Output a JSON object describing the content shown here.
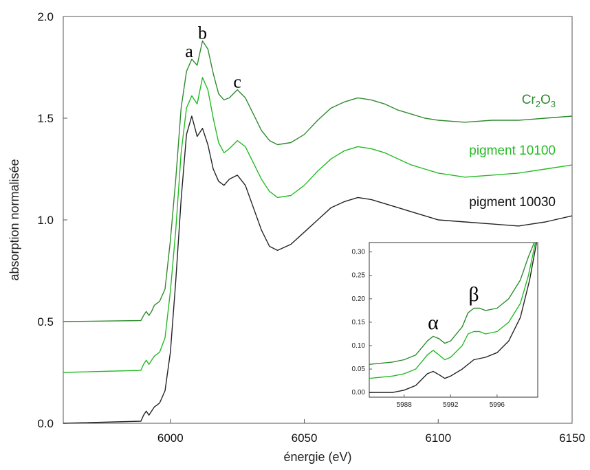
{
  "chart_data": [
    {
      "type": "line",
      "title": "",
      "xlabel": "énergie (eV)",
      "ylabel": "absorption normalisée",
      "xlim": [
        5960,
        6150
      ],
      "ylim": [
        0.0,
        2.0
      ],
      "xticks": [
        6000,
        6050,
        6100,
        6150
      ],
      "yticks": [
        0.0,
        0.5,
        1.0,
        1.5,
        2.0
      ],
      "x_tick_labels": [
        "6000",
        "6050",
        "6100",
        "6150"
      ],
      "y_tick_labels": [
        "0.0",
        "0.5",
        "1.0",
        "1.5",
        "2.0"
      ],
      "grid": false,
      "legend": "inline labels at right",
      "series": [
        {
          "name_parts": [
            "Cr",
            "2",
            "O",
            "3"
          ],
          "color": "#2e8b2e",
          "x": [
            5960,
            5989,
            5990,
            5991,
            5992,
            5993,
            5994,
            5995,
            5996,
            5998,
            6000,
            6002,
            6004,
            6006,
            6008,
            6010,
            6012,
            6014,
            6016,
            6018,
            6020,
            6022,
            6025,
            6028,
            6031,
            6034,
            6037,
            6040,
            6045,
            6050,
            6055,
            6060,
            6065,
            6070,
            6075,
            6080,
            6085,
            6090,
            6095,
            6100,
            6110,
            6120,
            6130,
            6140,
            6150
          ],
          "y": [
            0.5,
            0.505,
            0.53,
            0.55,
            0.53,
            0.55,
            0.58,
            0.59,
            0.6,
            0.66,
            0.9,
            1.2,
            1.55,
            1.73,
            1.79,
            1.76,
            1.88,
            1.84,
            1.72,
            1.62,
            1.59,
            1.6,
            1.64,
            1.6,
            1.52,
            1.44,
            1.39,
            1.37,
            1.38,
            1.42,
            1.49,
            1.55,
            1.58,
            1.6,
            1.59,
            1.57,
            1.54,
            1.52,
            1.5,
            1.49,
            1.48,
            1.49,
            1.49,
            1.5,
            1.51
          ]
        },
        {
          "name": "pigment 10100",
          "color": "#22bb22",
          "x": [
            5960,
            5989,
            5990,
            5991,
            5992,
            5993,
            5994,
            5995,
            5996,
            5998,
            6000,
            6002,
            6004,
            6006,
            6008,
            6010,
            6012,
            6014,
            6016,
            6018,
            6020,
            6022,
            6025,
            6028,
            6031,
            6034,
            6037,
            6040,
            6045,
            6050,
            6055,
            6060,
            6065,
            6070,
            6075,
            6080,
            6085,
            6090,
            6095,
            6100,
            6110,
            6120,
            6130,
            6140,
            6150
          ],
          "y": [
            0.25,
            0.26,
            0.29,
            0.31,
            0.29,
            0.31,
            0.33,
            0.34,
            0.35,
            0.42,
            0.65,
            0.95,
            1.33,
            1.55,
            1.61,
            1.57,
            1.7,
            1.64,
            1.5,
            1.38,
            1.33,
            1.35,
            1.39,
            1.36,
            1.28,
            1.2,
            1.14,
            1.11,
            1.12,
            1.17,
            1.24,
            1.3,
            1.34,
            1.36,
            1.35,
            1.33,
            1.3,
            1.27,
            1.25,
            1.23,
            1.21,
            1.22,
            1.23,
            1.25,
            1.27
          ]
        },
        {
          "name": "pigment 10030",
          "color": "#222222",
          "x": [
            5960,
            5989,
            5990,
            5991,
            5992,
            5993,
            5994,
            5995,
            5996,
            5998,
            6000,
            6002,
            6004,
            6006,
            6008,
            6010,
            6012,
            6014,
            6016,
            6018,
            6020,
            6022,
            6025,
            6028,
            6031,
            6034,
            6037,
            6040,
            6045,
            6050,
            6055,
            6060,
            6065,
            6070,
            6075,
            6080,
            6085,
            6090,
            6095,
            6100,
            6110,
            6120,
            6130,
            6140,
            6150
          ],
          "y": [
            0.0,
            0.01,
            0.04,
            0.06,
            0.04,
            0.06,
            0.08,
            0.09,
            0.1,
            0.16,
            0.35,
            0.7,
            1.1,
            1.42,
            1.51,
            1.41,
            1.45,
            1.37,
            1.25,
            1.19,
            1.17,
            1.2,
            1.22,
            1.17,
            1.06,
            0.95,
            0.87,
            0.85,
            0.88,
            0.94,
            1.0,
            1.06,
            1.09,
            1.11,
            1.1,
            1.08,
            1.06,
            1.04,
            1.02,
            1.0,
            0.99,
            0.98,
            0.97,
            0.99,
            1.02
          ]
        }
      ],
      "annotations": [
        {
          "text": "a",
          "x": 6007,
          "y": 1.8
        },
        {
          "text": "b",
          "x": 6012,
          "y": 1.89
        },
        {
          "text": "c",
          "x": 6025,
          "y": 1.65
        }
      ]
    },
    {
      "type": "line",
      "title": "",
      "xlabel": "",
      "ylabel": "",
      "xlim": [
        5985,
        5999.5
      ],
      "ylim": [
        -0.01,
        0.32
      ],
      "xticks": [
        5988,
        5992,
        5996
      ],
      "yticks": [
        0.0,
        0.05,
        0.1,
        0.15,
        0.2,
        0.25,
        0.3
      ],
      "x_tick_labels": [
        "5988",
        "5992",
        "5996"
      ],
      "y_tick_labels": [
        "0.00",
        "0.05",
        "0.10",
        "0.15",
        "0.20",
        "0.25",
        "0.30"
      ],
      "grid": false,
      "legend": "none",
      "series": [
        {
          "color": "#2e8b2e",
          "x": [
            5985,
            5987,
            5988,
            5989,
            5990,
            5990.5,
            5991,
            5991.5,
            5992,
            5993,
            5993.5,
            5994,
            5994.5,
            5995,
            5996,
            5997,
            5998,
            5998.7,
            5999.2
          ],
          "y": [
            0.06,
            0.065,
            0.07,
            0.08,
            0.11,
            0.12,
            0.115,
            0.105,
            0.11,
            0.14,
            0.17,
            0.18,
            0.18,
            0.175,
            0.18,
            0.2,
            0.24,
            0.29,
            0.32
          ]
        },
        {
          "color": "#22bb22",
          "x": [
            5985,
            5987,
            5988,
            5989,
            5990,
            5990.5,
            5991,
            5991.5,
            5992,
            5993,
            5993.5,
            5994,
            5994.5,
            5995,
            5996,
            5997,
            5998,
            5998.7,
            5999.3
          ],
          "y": [
            0.03,
            0.035,
            0.04,
            0.05,
            0.08,
            0.09,
            0.08,
            0.07,
            0.075,
            0.1,
            0.125,
            0.13,
            0.13,
            0.125,
            0.13,
            0.15,
            0.19,
            0.25,
            0.32
          ]
        },
        {
          "color": "#222222",
          "x": [
            5985,
            5987,
            5988,
            5989,
            5990,
            5990.5,
            5991,
            5991.5,
            5992,
            5993,
            5994,
            5995,
            5996,
            5997,
            5998,
            5998.8,
            5999.4
          ],
          "y": [
            0.0,
            0.0,
            0.005,
            0.015,
            0.04,
            0.045,
            0.038,
            0.03,
            0.035,
            0.05,
            0.07,
            0.075,
            0.085,
            0.11,
            0.16,
            0.24,
            0.32
          ]
        }
      ],
      "annotations": [
        {
          "text": "α",
          "x": 5990.5,
          "y": 0.135
        },
        {
          "text": "β",
          "x": 5994,
          "y": 0.195
        }
      ]
    }
  ]
}
